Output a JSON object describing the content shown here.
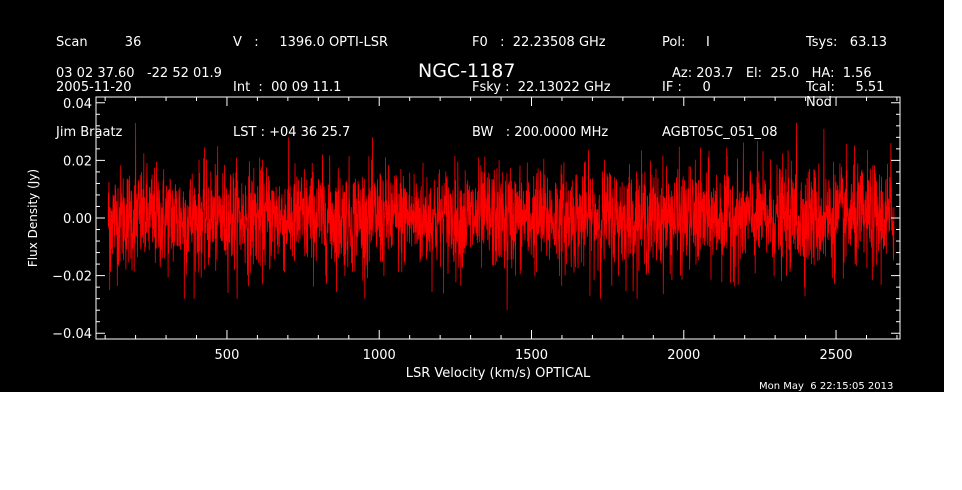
{
  "header": {
    "col1": [
      "Scan         36",
      "2005-11-20",
      "Jim Braatz"
    ],
    "col2": [
      "V   :     1396.0 OPTI-LSR",
      "Int  :  00 09 11.1",
      "LST : +04 36 25.7"
    ],
    "col3": [
      "F0   :  22.23508 GHz",
      "Fsky :  22.13022 GHz",
      "BW   : 200.0000 MHz"
    ],
    "col4": [
      "Pol:     I",
      "IF :     0",
      "AGBT05C_051_08"
    ],
    "col4b": [
      "",
      "",
      "Nod"
    ],
    "col5": [
      "Tsys:   63.13",
      "Tcal:     5.51",
      ""
    ],
    "coords": "03 02 37.60   -22 52 01.9",
    "object": "NGC-1187",
    "azel": "Az: 203.7   El:  25.0   HA:  1.56"
  },
  "timestamp": "Mon May  6 22:15:05 2013",
  "colors": {
    "background": "#000000",
    "axes": "#ffffff",
    "series": "#ff0000"
  },
  "chart_data": {
    "type": "line",
    "xlabel": "LSR Velocity (km/s) OPTICAL",
    "ylabel": "Flux Density (Jy)",
    "xlim": [
      70,
      2710
    ],
    "ylim": [
      -0.042,
      0.042
    ],
    "xticks": [
      500,
      1000,
      1500,
      2000,
      2500
    ],
    "xtick_labels": [
      "500",
      "1000",
      "1500",
      "2000",
      "2500"
    ],
    "yticks": [
      -0.04,
      -0.02,
      0.0,
      0.02,
      0.04
    ],
    "ytick_labels": [
      "−0.04",
      "−0.02",
      "0.00",
      "0.02",
      "0.04"
    ],
    "grid": false,
    "series": [
      {
        "x_start": 110,
        "x_end": 2690,
        "rms": 0.009,
        "mean": 0.0,
        "peaks": [
          {
            "x": 115,
            "y": -0.025
          },
          {
            "x": 200,
            "y": 0.033
          },
          {
            "x": 360,
            "y": -0.028
          },
          {
            "x": 1420,
            "y": -0.032
          },
          {
            "x": 2370,
            "y": 0.033
          },
          {
            "x": 2460,
            "y": 0.031
          },
          {
            "x": 2680,
            "y": 0.026
          }
        ]
      }
    ]
  }
}
